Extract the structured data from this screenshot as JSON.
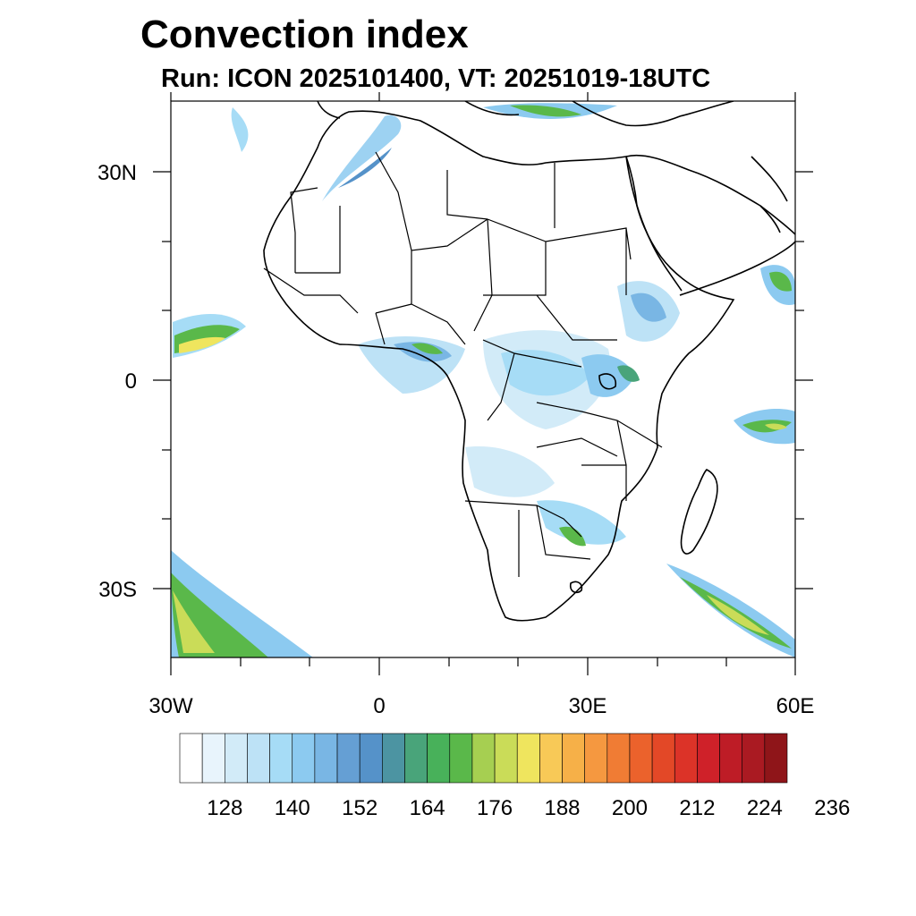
{
  "title": "Convection index",
  "subtitle": "Run: ICON 2025101400,  VT: 20251019-18UTC",
  "map": {
    "lon_range": [
      -30,
      60
    ],
    "lat_range": [
      -40,
      40
    ],
    "lat_ticks": [
      {
        "value": 30,
        "label": "30N"
      },
      {
        "value": 0,
        "label": "0"
      },
      {
        "value": -30,
        "label": "30S"
      }
    ],
    "lon_ticks": [
      {
        "value": -30,
        "label": "30W"
      },
      {
        "value": 0,
        "label": "0"
      },
      {
        "value": 30,
        "label": "30E"
      },
      {
        "value": 60,
        "label": "60E"
      }
    ]
  },
  "colorbar": {
    "colors": [
      "#ffffff",
      "#e8f4fc",
      "#d2ebf8",
      "#bde2f6",
      "#a6dcf6",
      "#8ccaf0",
      "#79b6e4",
      "#659fd4",
      "#5592c9",
      "#4c94a2",
      "#49a47a",
      "#48b15a",
      "#5ab84a",
      "#a6cf51",
      "#cadc58",
      "#efe55e",
      "#f8c957",
      "#f6b048",
      "#f59840",
      "#f07c34",
      "#eb622c",
      "#e34827",
      "#dc3328",
      "#cf2129",
      "#be1c26",
      "#aa1a22",
      "#8f1519"
    ],
    "labels": [
      "128",
      "140",
      "152",
      "164",
      "176",
      "188",
      "200",
      "212",
      "224",
      "236"
    ]
  }
}
